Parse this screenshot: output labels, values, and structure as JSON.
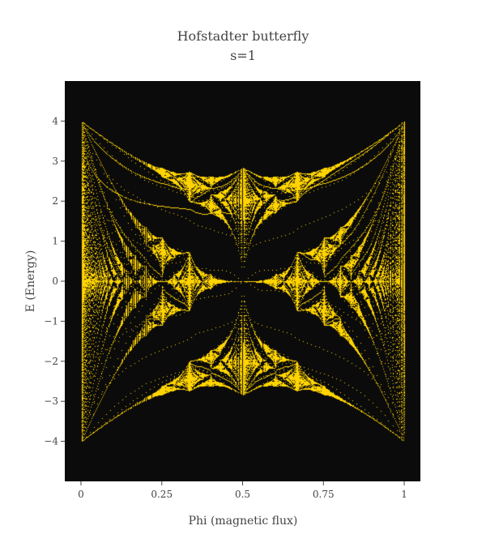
{
  "chart_data": {
    "type": "scatter",
    "title": "Hofstadter butterfly",
    "subtitle": "s=1",
    "xlabel": "Phi (magnetic flux)",
    "ylabel": "E (Energy)",
    "xlim": [
      -0.05,
      1.05
    ],
    "ylim": [
      -5,
      5
    ],
    "x_ticks": [
      0,
      0.25,
      0.5,
      0.75,
      1
    ],
    "x_tick_labels": [
      "0",
      "0.25",
      "0.5",
      "0.75",
      "1"
    ],
    "y_ticks": [
      -4,
      -3,
      -2,
      -1,
      0,
      1,
      2,
      3,
      4
    ],
    "y_tick_labels": [
      "−4",
      "−3",
      "−2",
      "−1",
      "0",
      "1",
      "2",
      "3",
      "4"
    ],
    "energy_max": 4.43,
    "grid": false,
    "legend": "none",
    "colors": {
      "background": "#0b0b0b",
      "points": "#ffd400",
      "text": "#444444"
    }
  }
}
